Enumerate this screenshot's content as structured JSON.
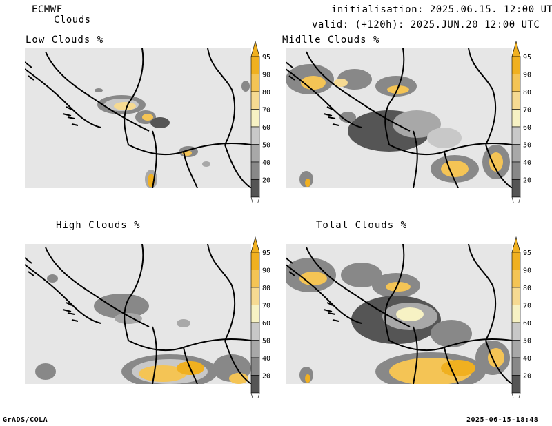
{
  "header": {
    "model": "ECMWF",
    "product": "Clouds",
    "init": "initialisation: 2025.06.15. 12:00 UTC",
    "valid": "valid: (+120h): 2025.JUN.20 12:00 UTC"
  },
  "panels": [
    {
      "title": "Low Clouds %"
    },
    {
      "title": "Midlle Clouds %"
    },
    {
      "title": "High Clouds %"
    },
    {
      "title": "Total Clouds %"
    }
  ],
  "legend": {
    "levels": [
      "95",
      "90",
      "80",
      "70",
      "60",
      "50",
      "40",
      "20"
    ],
    "colors": {
      "c95": "#f0b020",
      "c90": "#f4c455",
      "c80": "#f6da92",
      "c70": "#f7f2c4",
      "c60": "#c8c8c8",
      "c50": "#a8a8a8",
      "c40": "#888888",
      "c20": "#555555",
      "background": "#e6e6e6"
    }
  },
  "footer": {
    "left": "GrADS/COLA",
    "right": "2025-06-15-18:48"
  }
}
